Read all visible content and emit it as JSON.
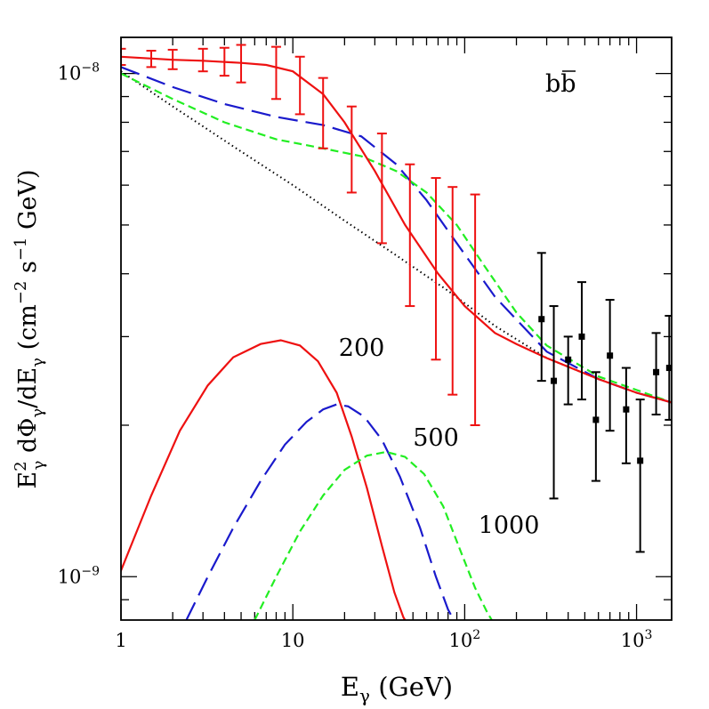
{
  "chart_data": {
    "type": "line",
    "xscale": "log",
    "yscale": "log",
    "xlim": [
      1,
      1600
    ],
    "ylim": [
      8.2e-10,
      1.18e-08
    ],
    "xlabel": "E",
    "xlabel_sub": "γ",
    "xlabel_unit": " (GeV)",
    "ylabel_parts": {
      "e": "E",
      "e_sup": "2",
      "e_sub": "γ",
      "mid": " dΦ",
      "mid_sub": "γ",
      "div": "/dE",
      "div_sub": "γ",
      "units": " (cm",
      "cm_sup": "−2",
      "s": " s",
      "s_sup": "−1",
      "gev": " GeV)"
    },
    "x_tick_labels": [
      {
        "value": 1,
        "text": "1"
      },
      {
        "value": 10,
        "text": "10"
      },
      {
        "value": 100,
        "base": "10",
        "exp": "2"
      },
      {
        "value": 1000,
        "base": "10",
        "exp": "3"
      }
    ],
    "y_tick_labels": [
      {
        "value": 1e-08,
        "base": "10",
        "exp": "−8"
      },
      {
        "value": 1e-09,
        "base": "10",
        "exp": "−9"
      }
    ],
    "panel_label": {
      "main": "b",
      "bar": "b"
    },
    "annotations": [
      {
        "text": "200",
        "x": 18.5,
        "y": 2.75e-09
      },
      {
        "text": "500",
        "x": 50,
        "y": 1.82e-09
      },
      {
        "text": "1000",
        "x": 120,
        "y": 1.22e-09
      }
    ],
    "colors": {
      "red": "#ee1111",
      "blue": "#1a1acc",
      "green": "#22ee22",
      "black": "#000000"
    },
    "series": [
      {
        "style": "dotted",
        "color": "black",
        "x": [
          1,
          2,
          5,
          10,
          20,
          40,
          80,
          150,
          300,
          600,
          1000,
          1600
        ],
        "y": [
          1.01e-08,
          8.6e-09,
          7e-09,
          6e-09,
          5.1e-09,
          4.35e-09,
          3.7e-09,
          3.15e-09,
          2.72e-09,
          2.47e-09,
          2.32e-09,
          2.22e-09
        ]
      },
      {
        "style": "long-dash",
        "color": "blue",
        "x": [
          1,
          2,
          4,
          8,
          15,
          25,
          40,
          60,
          90,
          150,
          300,
          600,
          1000,
          1600
        ],
        "y": [
          1.03e-08,
          9.4e-09,
          8.7e-09,
          8.2e-09,
          7.9e-09,
          7.5e-09,
          6.6e-09,
          5.6e-09,
          4.6e-09,
          3.6e-09,
          2.8e-09,
          2.47e-09,
          2.32e-09,
          2.22e-09
        ]
      },
      {
        "style": "short-dash",
        "color": "green",
        "x": [
          1,
          2,
          4,
          8,
          15,
          25,
          40,
          60,
          90,
          130,
          200,
          300,
          600,
          1000,
          1600
        ],
        "y": [
          1e-08,
          8.9e-09,
          8e-09,
          7.4e-09,
          7.1e-09,
          6.85e-09,
          6.4e-09,
          5.8e-09,
          5e-09,
          4.15e-09,
          3.35e-09,
          2.88e-09,
          2.5e-09,
          2.35e-09,
          2.22e-09
        ]
      },
      {
        "style": "solid",
        "color": "red",
        "x": [
          1,
          2,
          3,
          5,
          7,
          10,
          15,
          20,
          30,
          45,
          70,
          100,
          150,
          200,
          300,
          600,
          1000,
          1600
        ],
        "y": [
          1.08e-08,
          1.065e-08,
          1.06e-08,
          1.05e-08,
          1.04e-08,
          1.01e-08,
          9.1e-09,
          8e-09,
          6.4e-09,
          5e-09,
          4e-09,
          3.45e-09,
          3.05e-09,
          2.9e-09,
          2.72e-09,
          2.47e-09,
          2.32e-09,
          2.22e-09
        ]
      },
      {
        "style": "solid",
        "color": "red",
        "label": "200",
        "x": [
          0.99,
          1.5,
          2.2,
          3.2,
          4.5,
          6.5,
          8.5,
          11,
          14,
          18,
          22,
          27,
          33,
          39,
          44,
          47
        ],
        "y": [
          1.02e-09,
          1.45e-09,
          1.95e-09,
          2.4e-09,
          2.73e-09,
          2.9e-09,
          2.95e-09,
          2.88e-09,
          2.68e-09,
          2.32e-09,
          1.9e-09,
          1.5e-09,
          1.15e-09,
          9.3e-10,
          8.3e-10,
          8e-10
        ]
      },
      {
        "style": "long-dash",
        "color": "blue",
        "label": "500",
        "x": [
          2.4,
          3.2,
          4.5,
          6.5,
          9,
          12,
          15,
          18,
          21,
          26,
          33,
          42,
          55,
          68,
          80,
          90
        ],
        "y": [
          8.2e-10,
          1e-09,
          1.25e-09,
          1.55e-09,
          1.83e-09,
          2.03e-09,
          2.15e-09,
          2.2e-09,
          2.18e-09,
          2.08e-09,
          1.87e-09,
          1.58e-09,
          1.25e-09,
          1e-09,
          8.6e-10,
          8e-10
        ]
      },
      {
        "style": "short-dash",
        "color": "green",
        "label": "1000",
        "x": [
          6.0,
          8,
          11,
          15,
          20,
          27,
          35,
          45,
          58,
          75,
          95,
          115,
          135,
          150
        ],
        "y": [
          8.2e-10,
          1e-09,
          1.23e-09,
          1.45e-09,
          1.63e-09,
          1.74e-09,
          1.77e-09,
          1.73e-09,
          1.6e-09,
          1.38e-09,
          1.12e-09,
          9.5e-10,
          8.5e-10,
          8e-10
        ]
      }
    ],
    "error_series": [
      {
        "name": "red data",
        "color": "red",
        "marker": "none",
        "points": [
          {
            "x": 1.0,
            "y": 1.08e-08,
            "lo": 1.04e-08,
            "hi": 1.12e-08
          },
          {
            "x": 1.5,
            "y": 1.07e-08,
            "lo": 1.03e-08,
            "hi": 1.11e-08
          },
          {
            "x": 2.0,
            "y": 1.065e-08,
            "lo": 1.02e-08,
            "hi": 1.115e-08
          },
          {
            "x": 3.0,
            "y": 1.06e-08,
            "lo": 1.01e-08,
            "hi": 1.12e-08
          },
          {
            "x": 4.0,
            "y": 1.055e-08,
            "lo": 9.9e-09,
            "hi": 1.125e-08
          },
          {
            "x": 5.0,
            "y": 1.05e-08,
            "lo": 9.6e-09,
            "hi": 1.14e-08
          },
          {
            "x": 8.0,
            "y": 1e-08,
            "lo": 8.9e-09,
            "hi": 1.13e-08
          },
          {
            "x": 11.0,
            "y": 9.5e-09,
            "lo": 8.3e-09,
            "hi": 1.08e-08
          },
          {
            "x": 15.0,
            "y": 8.3e-09,
            "lo": 7.1e-09,
            "hi": 9.8e-09
          },
          {
            "x": 22.0,
            "y": 7.1e-09,
            "lo": 5.8e-09,
            "hi": 8.6e-09
          },
          {
            "x": 33.0,
            "y": 5.9e-09,
            "lo": 4.6e-09,
            "hi": 7.6e-09
          },
          {
            "x": 48.0,
            "y": 4.8e-09,
            "lo": 3.45e-09,
            "hi": 6.6e-09
          },
          {
            "x": 68.0,
            "y": 4.1e-09,
            "lo": 2.7e-09,
            "hi": 6.2e-09
          },
          {
            "x": 85.0,
            "y": 3.7e-09,
            "lo": 2.3e-09,
            "hi": 5.95e-09
          },
          {
            "x": 115.0,
            "y": 3.4e-09,
            "lo": 2e-09,
            "hi": 5.75e-09
          }
        ]
      },
      {
        "name": "black data",
        "color": "black",
        "marker": "square",
        "points": [
          {
            "x": 280,
            "y": 3.25e-09,
            "lo": 2.45e-09,
            "hi": 4.4e-09
          },
          {
            "x": 330,
            "y": 2.45e-09,
            "lo": 1.43e-09,
            "hi": 3.45e-09
          },
          {
            "x": 400,
            "y": 2.7e-09,
            "lo": 2.2e-09,
            "hi": 3e-09
          },
          {
            "x": 480,
            "y": 3e-09,
            "lo": 2.25e-09,
            "hi": 3.85e-09
          },
          {
            "x": 580,
            "y": 2.05e-09,
            "lo": 1.55e-09,
            "hi": 2.55e-09
          },
          {
            "x": 700,
            "y": 2.75e-09,
            "lo": 1.95e-09,
            "hi": 3.55e-09
          },
          {
            "x": 870,
            "y": 2.15e-09,
            "lo": 1.68e-09,
            "hi": 2.6e-09
          },
          {
            "x": 1050,
            "y": 1.7e-09,
            "lo": 1.12e-09,
            "hi": 2.25e-09
          },
          {
            "x": 1300,
            "y": 2.55e-09,
            "lo": 2.1e-09,
            "hi": 3.05e-09
          },
          {
            "x": 1550,
            "y": 2.6e-09,
            "lo": 2.05e-09,
            "hi": 3.3e-09
          }
        ]
      }
    ]
  }
}
